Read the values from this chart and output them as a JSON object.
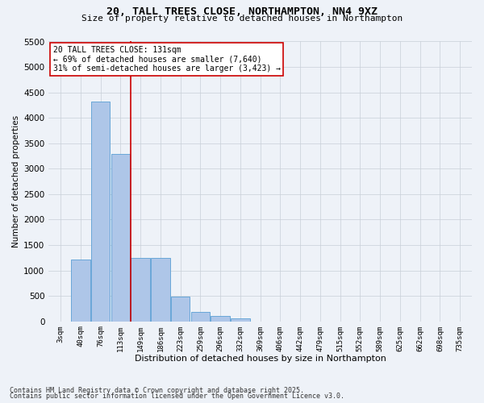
{
  "title1": "20, TALL TREES CLOSE, NORTHAMPTON, NN4 9XZ",
  "title2": "Size of property relative to detached houses in Northampton",
  "xlabel": "Distribution of detached houses by size in Northampton",
  "ylabel": "Number of detached properties",
  "categories": [
    "3sqm",
    "40sqm",
    "76sqm",
    "113sqm",
    "149sqm",
    "186sqm",
    "223sqm",
    "259sqm",
    "296sqm",
    "332sqm",
    "369sqm",
    "406sqm",
    "442sqm",
    "479sqm",
    "515sqm",
    "552sqm",
    "589sqm",
    "625sqm",
    "662sqm",
    "698sqm",
    "735sqm"
  ],
  "values": [
    0,
    1220,
    4320,
    3290,
    1250,
    1240,
    490,
    185,
    100,
    55,
    0,
    0,
    0,
    0,
    0,
    0,
    0,
    0,
    0,
    0,
    0
  ],
  "bar_color": "#aec6e8",
  "bar_edge_color": "#5a9fd4",
  "vline_x_index": 3.5,
  "vline_color": "#cc0000",
  "annotation_line1": "20 TALL TREES CLOSE: 131sqm",
  "annotation_line2": "← 69% of detached houses are smaller (7,640)",
  "annotation_line3": "31% of semi-detached houses are larger (3,423) →",
  "annotation_box_color": "#ffffff",
  "annotation_box_edge": "#cc0000",
  "ylim": [
    0,
    5500
  ],
  "yticks": [
    0,
    500,
    1000,
    1500,
    2000,
    2500,
    3000,
    3500,
    4000,
    4500,
    5000,
    5500
  ],
  "footer1": "Contains HM Land Registry data © Crown copyright and database right 2025.",
  "footer2": "Contains public sector information licensed under the Open Government Licence v3.0.",
  "bg_color": "#eef2f8",
  "plot_bg_color": "#eef2f8",
  "grid_color": "#c8cfd8"
}
